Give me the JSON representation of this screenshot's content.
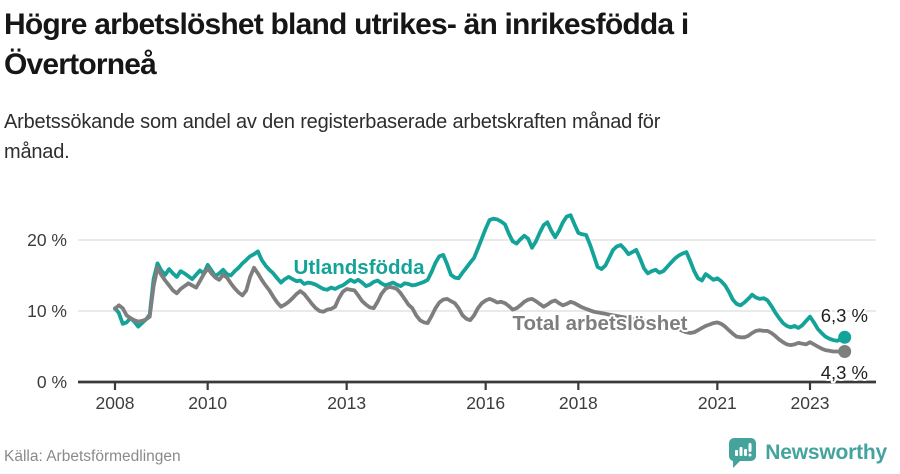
{
  "header": {
    "title_lines": [
      "Högre arbetslöshet bland utrikes- än inrikesfödda i",
      "Övertorneå"
    ],
    "subtitle_lines": [
      "Arbetssökande som andel av den registerbaserade arbetskraften månad för",
      "månad."
    ]
  },
  "footer": {
    "source": "Källa: Arbetsförmedlingen",
    "brand": "Newsworthy"
  },
  "colors": {
    "series1": "#14A398",
    "series2": "#7E7E7E",
    "brand": "#45A39E",
    "grid": "#E4E4E4",
    "axis": "#3A3A3A"
  },
  "chart_data": {
    "type": "line",
    "title": "Högre arbetslöshet bland utrikes- än inrikesfödda i Övertorneå",
    "subtitle": "Arbetssökande som andel av den registerbaserade arbetskraften månad för månad.",
    "x_axis": {
      "ticks": [
        2008,
        2010,
        2013,
        2016,
        2018,
        2021,
        2023
      ],
      "min": 2008.0,
      "max": 2023.75,
      "cadence": "monthly"
    },
    "y_axis": {
      "ticks": [
        0,
        10,
        20
      ],
      "tick_labels": [
        "0 %",
        "10 %",
        "20 %"
      ],
      "min": 0,
      "max": 27
    },
    "grid": "horizontal-only",
    "legend": "inline-labels",
    "series": [
      {
        "name": "Utlandsfödda",
        "color": "#14A398",
        "end_label": "6,3 %",
        "end_value": 6.3,
        "start_year": 2008,
        "values": [
          10.4,
          9.7,
          8.2,
          8.4,
          9.0,
          8.5,
          7.8,
          8.3,
          8.8,
          9.5,
          14.5,
          16.7,
          15.7,
          15.1,
          15.9,
          15.3,
          14.8,
          15.6,
          15.3,
          14.9,
          14.5,
          15.1,
          15.7,
          15.3,
          16.5,
          15.7,
          14.9,
          15.3,
          15.8,
          15.2,
          15.0,
          15.6,
          16.1,
          16.7,
          17.2,
          17.7,
          18.0,
          18.4,
          17.2,
          16.4,
          15.8,
          15.3,
          14.6,
          14.0,
          14.5,
          14.8,
          14.5,
          14.2,
          14.3,
          13.8,
          14.0,
          13.9,
          13.7,
          13.4,
          13.1,
          13.0,
          13.3,
          13.1,
          13.4,
          13.6,
          14.0,
          14.4,
          14.1,
          14.4,
          14.0,
          13.5,
          13.7,
          14.1,
          14.3,
          13.9,
          13.6,
          13.8,
          14.0,
          13.7,
          13.5,
          13.9,
          13.8,
          13.6,
          13.7,
          13.9,
          14.1,
          14.4,
          15.5,
          16.8,
          17.7,
          17.9,
          16.6,
          15.1,
          14.7,
          14.6,
          15.4,
          16.1,
          16.8,
          17.5,
          18.8,
          20.2,
          21.6,
          22.8,
          23.0,
          22.9,
          22.6,
          22.2,
          20.9,
          19.8,
          19.5,
          20.1,
          20.6,
          20.2,
          18.9,
          19.8,
          21.0,
          22.1,
          22.5,
          21.3,
          20.4,
          21.3,
          22.5,
          23.3,
          23.5,
          22.2,
          21.0,
          20.8,
          20.7,
          19.4,
          17.8,
          16.2,
          15.9,
          16.4,
          17.5,
          18.6,
          19.1,
          19.3,
          18.7,
          18.0,
          18.3,
          18.6,
          17.4,
          16.0,
          15.3,
          15.6,
          15.8,
          15.4,
          15.6,
          16.2,
          16.8,
          17.4,
          17.8,
          18.1,
          18.3,
          17.0,
          15.6,
          14.6,
          14.3,
          15.2,
          14.8,
          14.4,
          14.6,
          14.2,
          13.6,
          12.7,
          11.6,
          11.0,
          10.8,
          11.2,
          11.7,
          12.3,
          11.9,
          11.7,
          11.8,
          11.5,
          10.7,
          9.8,
          9.0,
          8.3,
          7.9,
          7.7,
          7.9,
          7.6,
          8.0,
          8.6,
          9.2,
          8.4,
          7.5,
          6.9,
          6.4,
          6.1,
          5.9,
          5.8,
          6.0,
          6.3
        ]
      },
      {
        "name": "Total arbetslöshet",
        "color": "#7E7E7E",
        "end_label": "4,3 %",
        "end_value": 4.3,
        "start_year": 2008,
        "values": [
          10.3,
          10.8,
          10.4,
          9.4,
          9.0,
          8.7,
          8.5,
          8.6,
          8.8,
          9.2,
          13.5,
          16.1,
          15.1,
          14.3,
          13.6,
          12.9,
          12.5,
          13.1,
          13.5,
          13.9,
          13.6,
          13.3,
          14.2,
          15.2,
          16.0,
          15.3,
          14.7,
          14.4,
          15.1,
          14.7,
          13.9,
          13.2,
          12.6,
          12.2,
          12.9,
          14.8,
          16.1,
          15.3,
          14.4,
          13.6,
          12.9,
          12.0,
          11.2,
          10.6,
          10.9,
          11.3,
          11.8,
          12.4,
          12.8,
          12.4,
          11.7,
          11.0,
          10.4,
          10.0,
          9.9,
          10.2,
          10.3,
          10.6,
          11.8,
          12.7,
          13.1,
          13.0,
          12.9,
          12.2,
          11.4,
          10.9,
          10.5,
          10.4,
          11.3,
          12.4,
          13.1,
          13.4,
          13.3,
          13.1,
          12.5,
          11.7,
          10.9,
          10.4,
          9.4,
          8.7,
          8.4,
          8.3,
          9.3,
          10.4,
          11.2,
          11.6,
          11.7,
          11.4,
          11.1,
          10.4,
          9.4,
          8.9,
          8.7,
          9.4,
          10.4,
          11.1,
          11.5,
          11.7,
          11.5,
          11.2,
          11.3,
          11.1,
          10.7,
          10.2,
          10.4,
          10.8,
          11.3,
          11.6,
          11.7,
          11.4,
          11.0,
          10.6,
          10.9,
          11.3,
          11.5,
          11.1,
          10.8,
          11.0,
          11.3,
          11.1,
          10.8,
          10.5,
          10.3,
          10.1,
          9.9,
          9.8,
          9.7,
          9.6,
          9.5,
          9.4,
          9.3,
          9.2,
          9.1,
          9.0,
          8.9,
          8.8,
          8.7,
          8.6,
          8.5,
          8.4,
          8.3,
          8.2,
          8.1,
          8.0,
          7.9,
          7.7,
          7.5,
          7.2,
          7.0,
          6.9,
          7.0,
          7.3,
          7.6,
          7.9,
          8.1,
          8.3,
          8.4,
          8.2,
          7.8,
          7.3,
          6.8,
          6.4,
          6.3,
          6.3,
          6.5,
          6.9,
          7.2,
          7.3,
          7.2,
          7.2,
          6.9,
          6.5,
          6.0,
          5.6,
          5.3,
          5.2,
          5.3,
          5.5,
          5.4,
          5.3,
          5.6,
          5.3,
          5.0,
          4.7,
          4.5,
          4.4,
          4.3,
          4.3,
          4.3,
          4.3
        ]
      }
    ]
  }
}
